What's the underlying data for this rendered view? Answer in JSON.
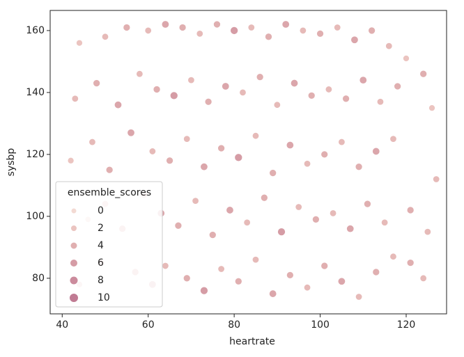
{
  "chart_data": {
    "type": "scatter",
    "x_label": "heartrate",
    "y_label": "sysbp",
    "xlim": [
      37.2,
      129.4
    ],
    "ylim": [
      68.5,
      166.5
    ],
    "xticks": [
      40,
      60,
      80,
      100,
      120
    ],
    "yticks": [
      80,
      100,
      120,
      140,
      160
    ],
    "x": [
      44,
      50,
      55,
      60,
      64,
      68,
      72,
      76,
      80,
      84,
      88,
      92,
      96,
      100,
      104,
      108,
      112,
      116,
      120,
      124,
      43,
      48,
      53,
      58,
      62,
      66,
      70,
      74,
      78,
      82,
      86,
      90,
      94,
      98,
      102,
      106,
      110,
      114,
      118,
      126,
      42,
      47,
      51,
      56,
      61,
      65,
      69,
      73,
      77,
      81,
      85,
      89,
      93,
      97,
      101,
      105,
      109,
      113,
      117,
      127,
      46,
      50,
      54,
      59,
      63,
      67,
      71,
      75,
      79,
      83,
      87,
      91,
      95,
      99,
      103,
      107,
      111,
      115,
      121,
      125,
      44,
      49,
      57,
      61,
      64,
      69,
      73,
      77,
      81,
      85,
      89,
      93,
      97,
      101,
      105,
      109,
      113,
      117,
      121,
      124
    ],
    "y": [
      156,
      158,
      161,
      160,
      162,
      161,
      159,
      162,
      160,
      161,
      158,
      162,
      160,
      159,
      161,
      157,
      160,
      155,
      151,
      146,
      138,
      143,
      136,
      146,
      141,
      139,
      144,
      137,
      142,
      140,
      145,
      136,
      143,
      139,
      141,
      138,
      144,
      137,
      142,
      135,
      118,
      124,
      115,
      127,
      121,
      118,
      125,
      116,
      122,
      119,
      126,
      114,
      123,
      117,
      120,
      124,
      116,
      121,
      125,
      112,
      99,
      104,
      96,
      107,
      101,
      97,
      105,
      94,
      102,
      98,
      106,
      95,
      103,
      99,
      101,
      96,
      104,
      98,
      102,
      95,
      78,
      85,
      82,
      78,
      84,
      80,
      76,
      83,
      79,
      86,
      75,
      81,
      77,
      84,
      79,
      74,
      82,
      87,
      85,
      80
    ],
    "scores": [
      2,
      3,
      4,
      3,
      5,
      4,
      3,
      4,
      6,
      3,
      4,
      5,
      3,
      4,
      3,
      5,
      4,
      3,
      2,
      4,
      3,
      4,
      5,
      3,
      4,
      6,
      3,
      4,
      5,
      3,
      4,
      3,
      5,
      4,
      3,
      4,
      5,
      3,
      4,
      2,
      2,
      3,
      4,
      5,
      3,
      4,
      3,
      5,
      4,
      6,
      3,
      4,
      5,
      3,
      4,
      3,
      4,
      5,
      3,
      3,
      1,
      3,
      4,
      3,
      5,
      4,
      3,
      4,
      5,
      3,
      4,
      6,
      3,
      4,
      3,
      5,
      4,
      3,
      4,
      3,
      2,
      3,
      4,
      5,
      3,
      4,
      6,
      3,
      4,
      3,
      5,
      4,
      3,
      4,
      5,
      3,
      4,
      3,
      4,
      3
    ],
    "legend": {
      "title": "ensemble_scores",
      "corner": "lower left",
      "values": [
        0,
        2,
        4,
        6,
        8,
        10
      ],
      "colors": [
        "#f3dad3",
        "#ebc4c0",
        "#e0afb0",
        "#d59ca5",
        "#cb8b9c",
        "#c07b93"
      ]
    }
  }
}
